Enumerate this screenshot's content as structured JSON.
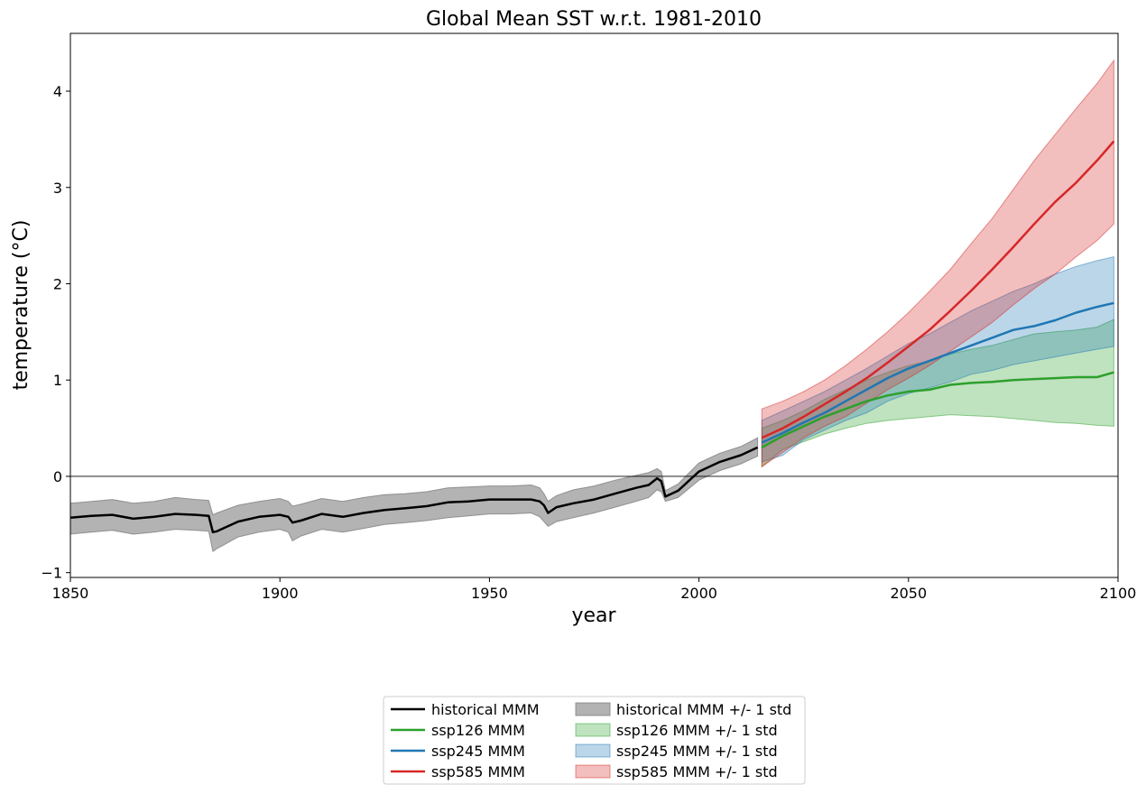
{
  "chart_data": {
    "type": "line",
    "title": "Global Mean SST w.r.t. 1981-2010",
    "xlabel": "year",
    "ylabel": "temperature ($^\\circ$C)",
    "xlim": [
      1850,
      2100
    ],
    "ylim": [
      -1.05,
      4.6
    ],
    "x_ticks": [
      1850,
      1900,
      1950,
      2000,
      2050,
      2100
    ],
    "x_tick_labels": [
      "1850",
      "1900",
      "1950",
      "2000",
      "2050",
      "2100"
    ],
    "y_ticks": [
      -1,
      0,
      1,
      2,
      3,
      4
    ],
    "y_tick_labels": [
      "−1",
      "0",
      "1",
      "2",
      "3",
      "4"
    ],
    "zero_line": 0,
    "grid": false,
    "legend": {
      "placement": "bottom-center, below plot",
      "columns": 2,
      "entries": [
        {
          "label": "historical MMM",
          "kind": "line",
          "series": "historical"
        },
        {
          "label": "ssp126 MMM",
          "kind": "line",
          "series": "ssp126"
        },
        {
          "label": "ssp245 MMM",
          "kind": "line",
          "series": "ssp245"
        },
        {
          "label": "ssp585 MMM",
          "kind": "line",
          "series": "ssp585"
        },
        {
          "label": "historical MMM +/- 1 std",
          "kind": "band",
          "series": "historical"
        },
        {
          "label": "ssp126 MMM +/- 1 std",
          "kind": "band",
          "series": "ssp126"
        },
        {
          "label": "ssp245 MMM +/- 1 std",
          "kind": "band",
          "series": "ssp245"
        },
        {
          "label": "ssp585 MMM +/- 1 std",
          "kind": "band",
          "series": "ssp585"
        }
      ]
    },
    "series": [
      {
        "name": "historical MMM",
        "band_name": "historical MMM +/- 1 std",
        "id": "historical",
        "color": "#000000",
        "band_color": "#808080",
        "band_opacity": 0.6,
        "x": [
          1850,
          1855,
          1860,
          1865,
          1870,
          1875,
          1880,
          1883,
          1884,
          1885,
          1890,
          1895,
          1900,
          1902,
          1903,
          1905,
          1910,
          1915,
          1920,
          1925,
          1930,
          1935,
          1940,
          1945,
          1950,
          1955,
          1960,
          1962,
          1963,
          1964,
          1966,
          1970,
          1975,
          1980,
          1985,
          1988,
          1990,
          1991,
          1992,
          1995,
          2000,
          2005,
          2010,
          2014
        ],
        "y": [
          -0.43,
          -0.41,
          -0.4,
          -0.44,
          -0.42,
          -0.39,
          -0.4,
          -0.41,
          -0.58,
          -0.57,
          -0.47,
          -0.42,
          -0.4,
          -0.42,
          -0.48,
          -0.46,
          -0.39,
          -0.42,
          -0.38,
          -0.35,
          -0.33,
          -0.31,
          -0.27,
          -0.26,
          -0.24,
          -0.24,
          -0.24,
          -0.26,
          -0.3,
          -0.38,
          -0.32,
          -0.28,
          -0.24,
          -0.18,
          -0.12,
          -0.09,
          -0.02,
          -0.05,
          -0.21,
          -0.15,
          0.05,
          0.15,
          0.22,
          0.3
        ],
        "lower": [
          -0.6,
          -0.58,
          -0.56,
          -0.6,
          -0.58,
          -0.55,
          -0.56,
          -0.57,
          -0.78,
          -0.75,
          -0.63,
          -0.58,
          -0.55,
          -0.58,
          -0.67,
          -0.62,
          -0.55,
          -0.58,
          -0.54,
          -0.5,
          -0.48,
          -0.46,
          -0.43,
          -0.41,
          -0.39,
          -0.39,
          -0.38,
          -0.42,
          -0.47,
          -0.52,
          -0.47,
          -0.43,
          -0.38,
          -0.32,
          -0.26,
          -0.22,
          -0.14,
          -0.16,
          -0.26,
          -0.22,
          -0.04,
          0.06,
          0.13,
          0.21
        ],
        "upper": [
          -0.28,
          -0.26,
          -0.24,
          -0.28,
          -0.26,
          -0.22,
          -0.24,
          -0.25,
          -0.4,
          -0.38,
          -0.3,
          -0.26,
          -0.23,
          -0.26,
          -0.31,
          -0.29,
          -0.23,
          -0.26,
          -0.22,
          -0.19,
          -0.18,
          -0.16,
          -0.12,
          -0.11,
          -0.1,
          -0.1,
          -0.09,
          -0.12,
          -0.18,
          -0.26,
          -0.2,
          -0.14,
          -0.1,
          -0.04,
          0.01,
          0.04,
          0.08,
          0.05,
          -0.15,
          -0.08,
          0.14,
          0.24,
          0.31,
          0.4
        ]
      },
      {
        "name": "ssp126 MMM",
        "band_name": "ssp126 MMM +/- 1 std",
        "id": "ssp126",
        "color": "#2ca02c",
        "band_color": "#2ca02c",
        "band_opacity": 0.3,
        "x": [
          2015,
          2020,
          2025,
          2030,
          2035,
          2040,
          2045,
          2050,
          2055,
          2060,
          2065,
          2070,
          2075,
          2080,
          2085,
          2090,
          2095,
          2099
        ],
        "y": [
          0.3,
          0.42,
          0.52,
          0.62,
          0.7,
          0.78,
          0.84,
          0.88,
          0.9,
          0.95,
          0.97,
          0.98,
          1.0,
          1.01,
          1.02,
          1.03,
          1.03,
          1.08
        ],
        "lower": [
          0.1,
          0.28,
          0.36,
          0.44,
          0.5,
          0.55,
          0.58,
          0.6,
          0.62,
          0.64,
          0.63,
          0.62,
          0.6,
          0.58,
          0.56,
          0.55,
          0.53,
          0.52
        ],
        "upper": [
          0.5,
          0.58,
          0.68,
          0.8,
          0.9,
          1.0,
          1.08,
          1.15,
          1.2,
          1.27,
          1.32,
          1.36,
          1.42,
          1.48,
          1.5,
          1.52,
          1.55,
          1.63
        ]
      },
      {
        "name": "ssp245 MMM",
        "band_name": "ssp245 MMM +/- 1 std",
        "id": "ssp245",
        "color": "#1f77b4",
        "band_color": "#1f77b4",
        "band_opacity": 0.3,
        "x": [
          2015,
          2020,
          2025,
          2030,
          2035,
          2040,
          2045,
          2050,
          2055,
          2060,
          2065,
          2070,
          2075,
          2080,
          2085,
          2090,
          2095,
          2099
        ],
        "y": [
          0.35,
          0.45,
          0.56,
          0.66,
          0.78,
          0.9,
          1.02,
          1.12,
          1.2,
          1.28,
          1.36,
          1.44,
          1.52,
          1.56,
          1.62,
          1.7,
          1.76,
          1.8
        ],
        "lower": [
          0.15,
          0.22,
          0.38,
          0.48,
          0.58,
          0.66,
          0.78,
          0.86,
          0.92,
          0.98,
          1.06,
          1.1,
          1.16,
          1.2,
          1.24,
          1.28,
          1.32,
          1.35
        ],
        "upper": [
          0.58,
          0.68,
          0.78,
          0.88,
          1.0,
          1.12,
          1.25,
          1.38,
          1.48,
          1.6,
          1.72,
          1.82,
          1.92,
          2.0,
          2.1,
          2.18,
          2.24,
          2.28
        ]
      },
      {
        "name": "ssp585 MMM",
        "band_name": "ssp585 MMM +/- 1 std",
        "id": "ssp585",
        "color": "#d62728",
        "band_color": "#d62728",
        "band_opacity": 0.3,
        "x": [
          2015,
          2020,
          2025,
          2030,
          2035,
          2040,
          2045,
          2050,
          2055,
          2060,
          2065,
          2070,
          2075,
          2080,
          2085,
          2090,
          2095,
          2099
        ],
        "y": [
          0.4,
          0.5,
          0.62,
          0.75,
          0.88,
          1.02,
          1.18,
          1.35,
          1.52,
          1.72,
          1.93,
          2.15,
          2.38,
          2.62,
          2.85,
          3.05,
          3.28,
          3.48
        ],
        "lower": [
          0.1,
          0.25,
          0.4,
          0.52,
          0.62,
          0.76,
          0.9,
          1.02,
          1.15,
          1.3,
          1.45,
          1.6,
          1.78,
          1.95,
          2.1,
          2.28,
          2.45,
          2.62
        ],
        "upper": [
          0.7,
          0.78,
          0.88,
          1.0,
          1.15,
          1.32,
          1.5,
          1.7,
          1.92,
          2.15,
          2.42,
          2.68,
          2.98,
          3.28,
          3.55,
          3.82,
          4.08,
          4.32
        ]
      }
    ]
  }
}
